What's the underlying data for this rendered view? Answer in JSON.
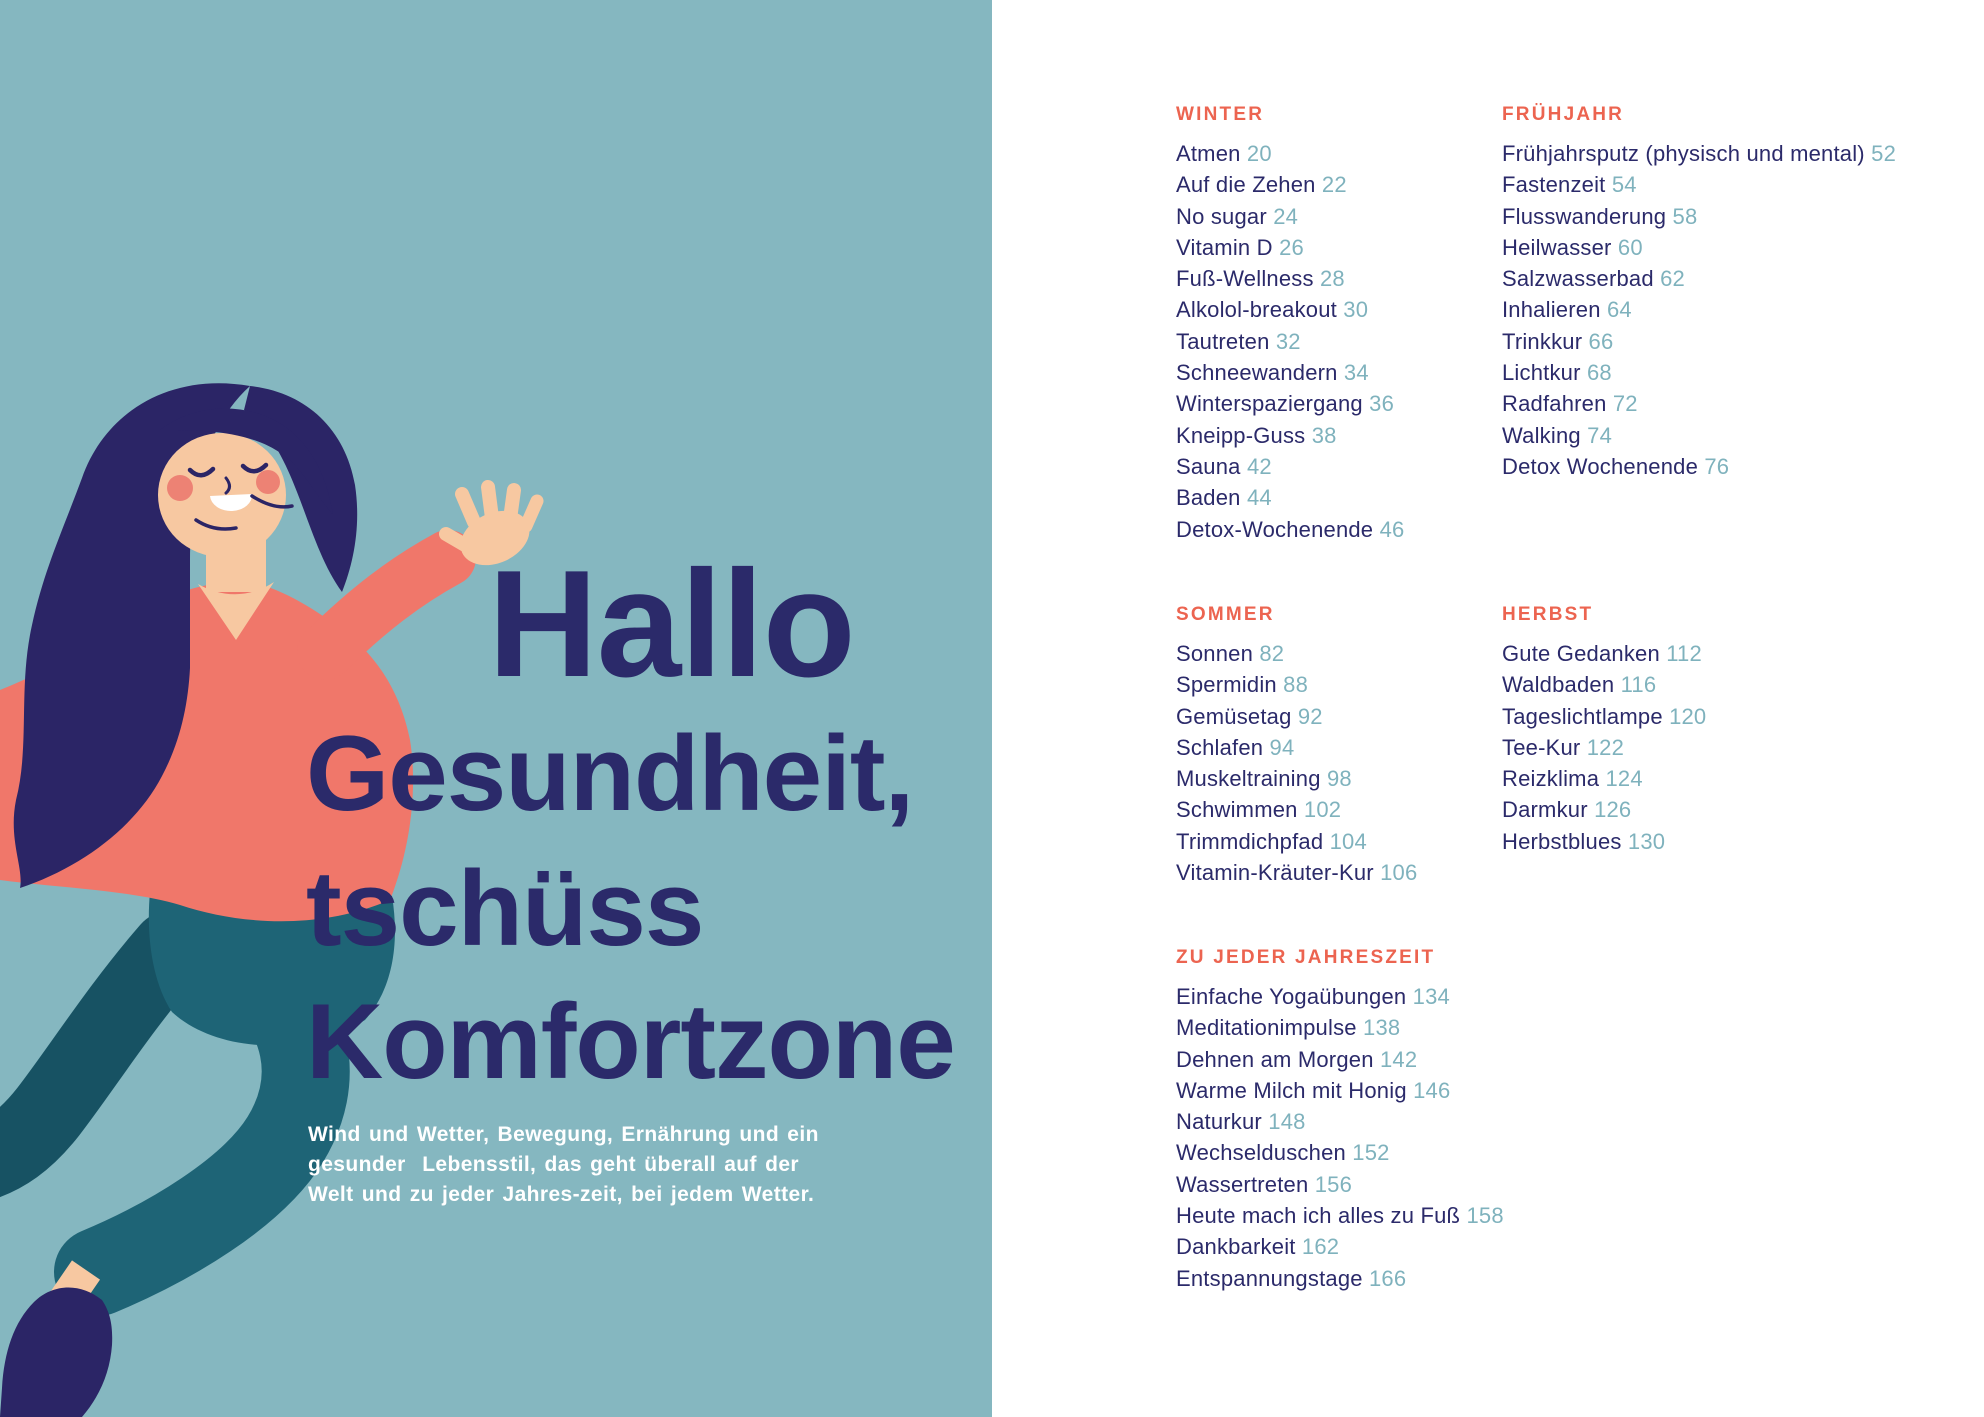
{
  "palette": {
    "background_teal": "#85b7c0",
    "navy": "#2b2a6a",
    "coral": "#f0776a",
    "coral_heading": "#ec6450",
    "page_number_teal": "#7fb2bd",
    "pants_teal": "#1e6476",
    "pants_dark_teal": "#175263",
    "skin": "#f7c8a1",
    "cheek": "#ed8274",
    "white": "#ffffff"
  },
  "left_page": {
    "headline": {
      "line1": "Hallo",
      "line2": "Gesundheit,",
      "line3": "tschüss",
      "line4": "Komfortzone"
    },
    "subtitle_lines": [
      "Wind und Wetter, Bewegung, Ernährung und ein",
      "gesunder  Lebensstil, das geht überall auf der",
      "Welt und zu jeder Jahres-zeit, bei jedem Wetter."
    ],
    "illustration": "waving-woman"
  },
  "toc": {
    "sections": [
      {
        "title": "WINTER",
        "items": [
          {
            "label": "Atmen",
            "page": "20"
          },
          {
            "label": "Auf die Zehen",
            "page": "22"
          },
          {
            "label": "No sugar",
            "page": "24"
          },
          {
            "label": "Vitamin D",
            "page": "26"
          },
          {
            "label": "Fuß-Wellness",
            "page": "28"
          },
          {
            "label": "Alkolol-breakout",
            "page": "30"
          },
          {
            "label": "Tautreten",
            "page": "32"
          },
          {
            "label": "Schneewandern",
            "page": "34"
          },
          {
            "label": "Winterspaziergang",
            "page": "36"
          },
          {
            "label": "Kneipp-Guss",
            "page": "38"
          },
          {
            "label": "Sauna",
            "page": "42"
          },
          {
            "label": "Baden",
            "page": "44"
          },
          {
            "label": "Detox-Wochenende",
            "page": "46"
          }
        ]
      },
      {
        "title": "FRÜHJAHR",
        "items": [
          {
            "label": "Frühjahrsputz (physisch und mental)",
            "page": "52"
          },
          {
            "label": "Fastenzeit",
            "page": "54"
          },
          {
            "label": "Flusswanderung",
            "page": "58"
          },
          {
            "label": "Heilwasser",
            "page": "60"
          },
          {
            "label": "Salzwasserbad",
            "page": "62"
          },
          {
            "label": "Inhalieren",
            "page": "64"
          },
          {
            "label": "Trinkkur",
            "page": "66"
          },
          {
            "label": "Lichtkur",
            "page": "68"
          },
          {
            "label": "Radfahren",
            "page": "72"
          },
          {
            "label": "Walking",
            "page": "74"
          },
          {
            "label": "Detox Wochenende",
            "page": "76"
          }
        ]
      },
      {
        "title": "SOMMER",
        "items": [
          {
            "label": "Sonnen",
            "page": "82"
          },
          {
            "label": "Spermidin",
            "page": "88"
          },
          {
            "label": "Gemüsetag",
            "page": "92"
          },
          {
            "label": "Schlafen",
            "page": "94"
          },
          {
            "label": "Muskeltraining",
            "page": "98"
          },
          {
            "label": "Schwimmen",
            "page": "102"
          },
          {
            "label": "Trimmdichpfad",
            "page": "104"
          },
          {
            "label": "Vitamin-Kräuter-Kur",
            "page": "106"
          }
        ]
      },
      {
        "title": "HERBST",
        "items": [
          {
            "label": "Gute Gedanken",
            "page": "112"
          },
          {
            "label": "Waldbaden",
            "page": "116"
          },
          {
            "label": "Tageslichtlampe",
            "page": "120"
          },
          {
            "label": "Tee-Kur",
            "page": "122"
          },
          {
            "label": "Reizklima",
            "page": "124"
          },
          {
            "label": "Darmkur",
            "page": "126"
          },
          {
            "label": "Herbstblues",
            "page": "130"
          }
        ]
      },
      {
        "title": "ZU JEDER JAHRESZEIT",
        "items": [
          {
            "label": "Einfache Yogaübungen",
            "page": "134"
          },
          {
            "label": "Meditationimpulse",
            "page": "138"
          },
          {
            "label": "Dehnen am Morgen",
            "page": "142"
          },
          {
            "label": "Warme Milch mit Honig",
            "page": "146"
          },
          {
            "label": "Naturkur",
            "page": "148"
          },
          {
            "label": "Wechselduschen",
            "page": "152"
          },
          {
            "label": "Wassertreten",
            "page": "156"
          },
          {
            "label": "Heute mach ich alles zu Fuß",
            "page": "158"
          },
          {
            "label": "Dankbarkeit",
            "page": "162"
          },
          {
            "label": "Entspannungstage",
            "page": "166"
          }
        ]
      }
    ]
  }
}
